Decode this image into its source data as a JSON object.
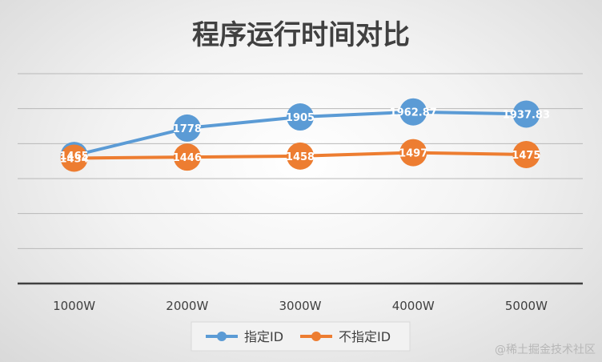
{
  "chart_data": {
    "type": "line",
    "title": "程序运行时间对比",
    "categories": [
      "1000W",
      "2000W",
      "3000W",
      "4000W",
      "5000W"
    ],
    "ylim": [
      0,
      2400
    ],
    "grid": true,
    "legend_position": "bottom",
    "series": [
      {
        "name": "指定ID",
        "color": "#5b9bd5",
        "values": [
          1465,
          1778,
          1905,
          1962.87,
          1937.83
        ],
        "labels": [
          "1465",
          "1778",
          "1905",
          "1962.87",
          "1937.83"
        ]
      },
      {
        "name": "不指定ID",
        "color": "#ed7d31",
        "values": [
          1434,
          1446,
          1458,
          1497,
          1475
        ],
        "labels": [
          "1434",
          "1446",
          "1458",
          "1497",
          "1475"
        ]
      }
    ]
  },
  "watermark": "@稀土掘金技术社区"
}
